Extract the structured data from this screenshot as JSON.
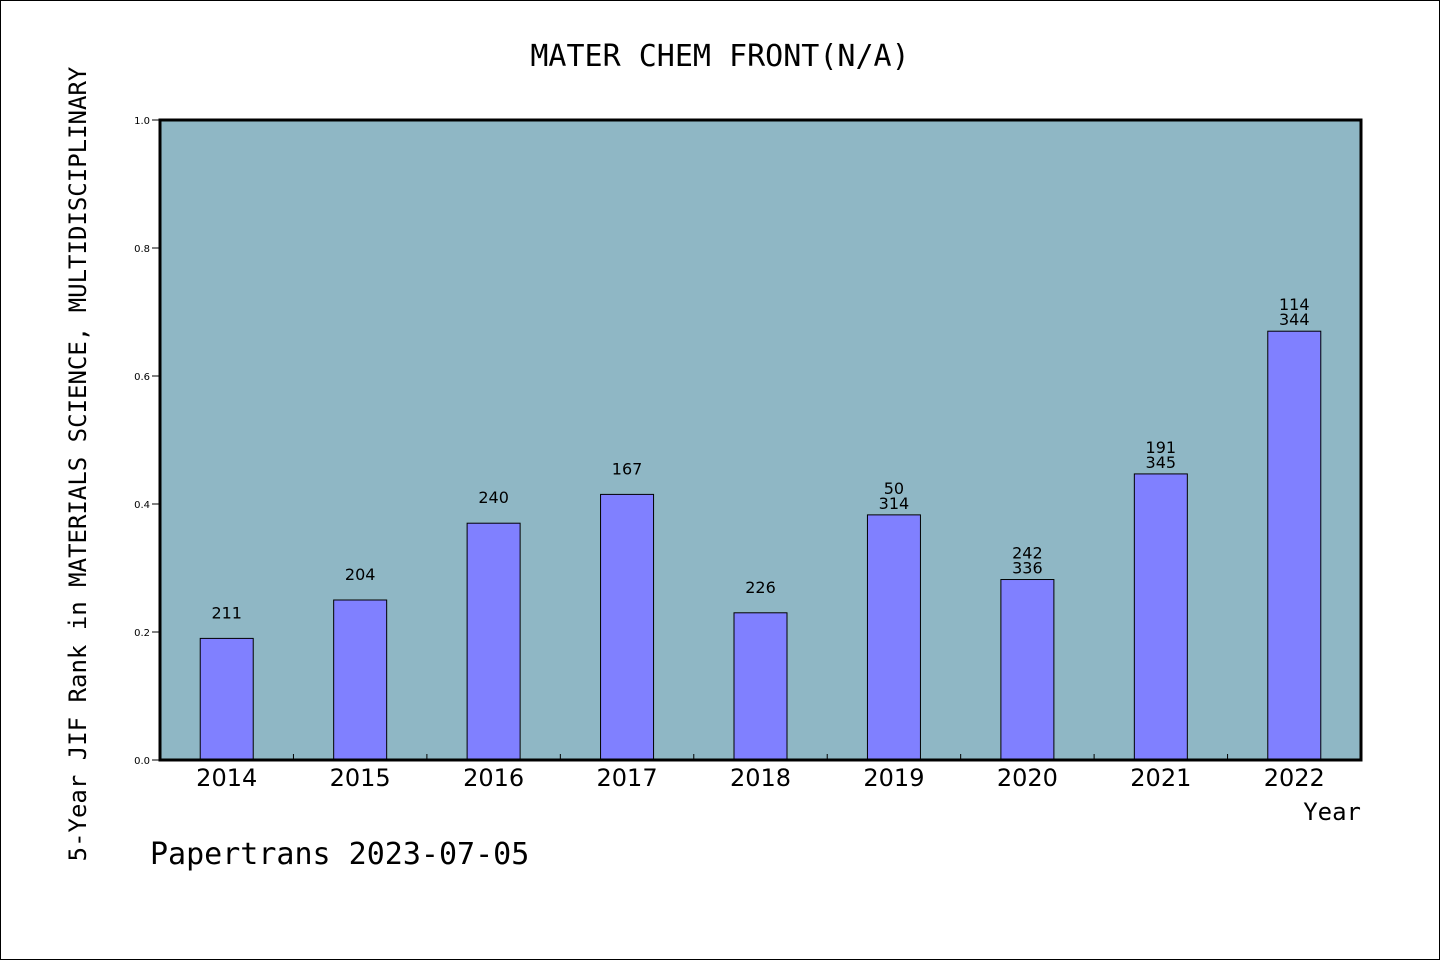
{
  "chart_data": {
    "type": "bar",
    "title": "MATER CHEM FRONT(N/A)",
    "xlabel": "Year",
    "ylabel": "5-Year JIF Rank in MATERIALS SCIENCE, MULTIDISCIPLINARY",
    "ylim": [
      0,
      1.0
    ],
    "yticks": [
      "0.0",
      "0.2",
      "0.4",
      "0.6",
      "0.8",
      "1.0"
    ],
    "grid": false,
    "categories": [
      "2014",
      "2015",
      "2016",
      "2017",
      "2018",
      "2019",
      "2020",
      "2021",
      "2022"
    ],
    "values": [
      0.19,
      0.25,
      0.37,
      0.415,
      0.23,
      0.383,
      0.282,
      0.447,
      0.67
    ],
    "bar_labels": [
      [
        "211"
      ],
      [
        "204"
      ],
      [
        "240"
      ],
      [
        "167"
      ],
      [
        "226"
      ],
      [
        "50",
        "314"
      ],
      [
        "242",
        "336"
      ],
      [
        "191",
        "345"
      ],
      [
        "114",
        "344"
      ]
    ],
    "plot_background": "#8fb7c5",
    "bar_color": "#8080ff"
  },
  "footer": "Papertrans 2023-07-05"
}
